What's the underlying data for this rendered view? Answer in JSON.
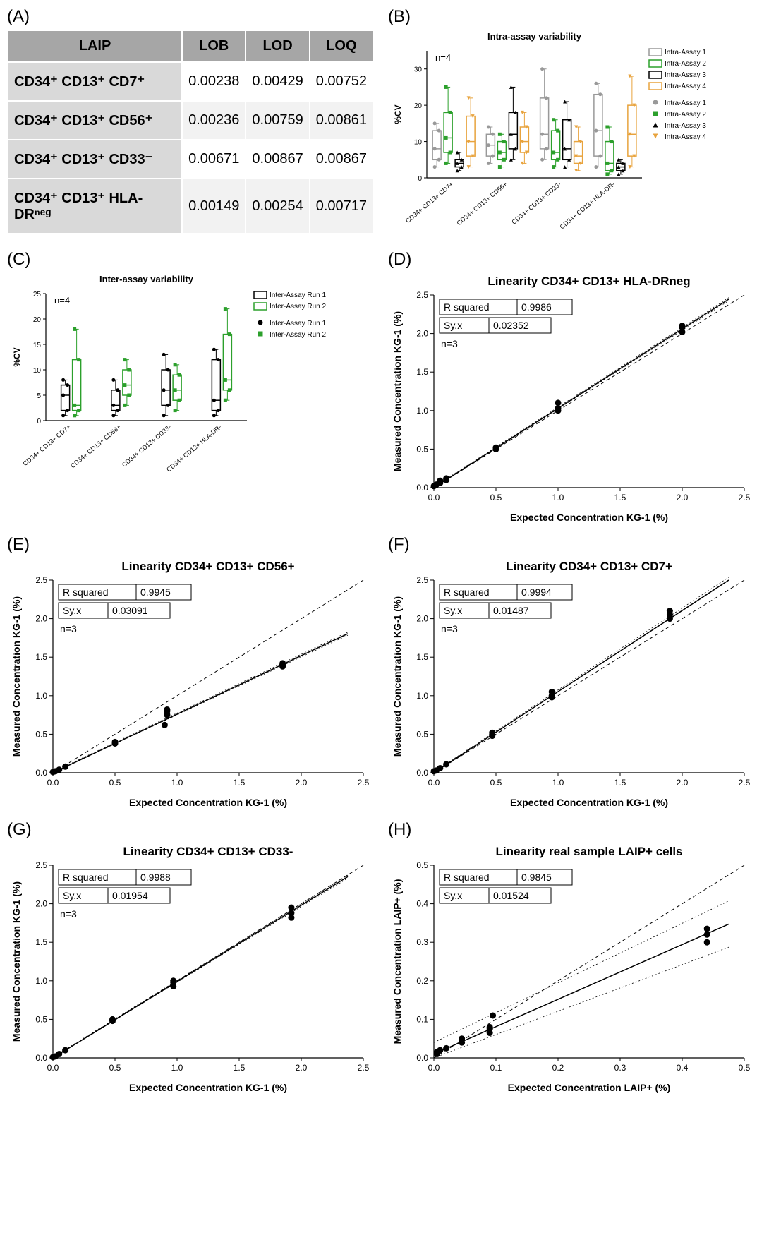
{
  "panelA": {
    "label": "(A)",
    "headers": [
      "LAIP",
      "LOB",
      "LOD",
      "LOQ"
    ],
    "rows": [
      {
        "laip": "CD34⁺ CD13⁺ CD7⁺",
        "lob": "0.00238",
        "lod": "0.00429",
        "loq": "0.00752"
      },
      {
        "laip": "CD34⁺ CD13⁺ CD56⁺",
        "lob": "0.00236",
        "lod": "0.00759",
        "loq": "0.00861"
      },
      {
        "laip": "CD34⁺ CD13⁺ CD33⁻",
        "lob": "0.00671",
        "lod": "0.00867",
        "loq": "0.00867"
      },
      {
        "laip": "CD34⁺ CD13⁺ HLA-DRⁿᵉᵍ",
        "lob": "0.00149",
        "lod": "0.00254",
        "loq": "0.00717"
      }
    ]
  },
  "panelB": {
    "label": "(B)",
    "title": "Intra-assay variability",
    "n_label": "n=4",
    "ylabel": "%CV",
    "ymax": 35,
    "ytick_step": 10,
    "categories": [
      "CD34+ CD13+ CD7+",
      "CD34+ CD13+ CD56+",
      "CD34+ CD13+ CD33-",
      "CD34+ CD13+ HLA-DR-"
    ],
    "series": [
      {
        "name": "Intra-Assay 1",
        "color": "#999999",
        "marker": "circle",
        "boxes": [
          {
            "min": 3,
            "q1": 5,
            "med": 8,
            "q3": 13,
            "max": 15
          },
          {
            "min": 4,
            "q1": 6,
            "med": 9,
            "q3": 12,
            "max": 14
          },
          {
            "min": 5,
            "q1": 8,
            "med": 12,
            "q3": 22,
            "max": 30
          },
          {
            "min": 3,
            "q1": 6,
            "med": 13,
            "q3": 23,
            "max": 26
          }
        ]
      },
      {
        "name": "Intra-Assay 2",
        "color": "#2ca02c",
        "marker": "square",
        "boxes": [
          {
            "min": 4,
            "q1": 7,
            "med": 11,
            "q3": 18,
            "max": 25
          },
          {
            "min": 3,
            "q1": 5,
            "med": 7,
            "q3": 10,
            "max": 12
          },
          {
            "min": 3,
            "q1": 5,
            "med": 7,
            "q3": 13,
            "max": 16
          },
          {
            "min": 1,
            "q1": 2,
            "med": 4,
            "q3": 10,
            "max": 14
          }
        ]
      },
      {
        "name": "Intra-Assay 3",
        "color": "#000000",
        "marker": "triangle",
        "boxes": [
          {
            "min": 2,
            "q1": 3,
            "med": 4,
            "q3": 5,
            "max": 7
          },
          {
            "min": 5,
            "q1": 8,
            "med": 12,
            "q3": 18,
            "max": 25
          },
          {
            "min": 3,
            "q1": 5,
            "med": 8,
            "q3": 16,
            "max": 21
          },
          {
            "min": 1,
            "q1": 2,
            "med": 3,
            "q3": 4,
            "max": 5
          }
        ]
      },
      {
        "name": "Intra-Assay 4",
        "color": "#e8a33d",
        "marker": "tridown",
        "boxes": [
          {
            "min": 3,
            "q1": 6,
            "med": 10,
            "q3": 17,
            "max": 22
          },
          {
            "min": 4,
            "q1": 7,
            "med": 10,
            "q3": 14,
            "max": 18
          },
          {
            "min": 2,
            "q1": 4,
            "med": 6,
            "q3": 10,
            "max": 14
          },
          {
            "min": 3,
            "q1": 6,
            "med": 12,
            "q3": 20,
            "max": 28
          }
        ]
      }
    ],
    "legend_box": [
      "Intra-Assay 1",
      "Intra-Assay 2",
      "Intra-Assay 3",
      "Intra-Assay 4"
    ],
    "legend_marker": [
      "Intra-Assay 1",
      "Intra-Assay 2",
      "Intra-Assay 3",
      "Intra-Assay 4"
    ]
  },
  "panelC": {
    "label": "(C)",
    "title": "Inter-assay variability",
    "n_label": "n=4",
    "ylabel": "%CV",
    "ymax": 25,
    "ytick_step": 5,
    "categories": [
      "CD34+ CD13+ CD7+",
      "CD34+ CD13+ CD56+",
      "CD34+ CD13+ CD33-",
      "CD34+ CD13+ HLA-DR-"
    ],
    "series": [
      {
        "name": "Inter-Assay Run 1",
        "color": "#000000",
        "marker": "circle",
        "boxes": [
          {
            "min": 1,
            "q1": 2,
            "med": 5,
            "q3": 7,
            "max": 8
          },
          {
            "min": 1,
            "q1": 2,
            "med": 3,
            "q3": 6,
            "max": 8
          },
          {
            "min": 1,
            "q1": 3,
            "med": 6,
            "q3": 10,
            "max": 13
          },
          {
            "min": 1,
            "q1": 2,
            "med": 4,
            "q3": 12,
            "max": 14
          }
        ]
      },
      {
        "name": "Inter-Assay Run 2",
        "color": "#2ca02c",
        "marker": "square",
        "boxes": [
          {
            "min": 1,
            "q1": 2,
            "med": 3,
            "q3": 12,
            "max": 18
          },
          {
            "min": 3,
            "q1": 5,
            "med": 7,
            "q3": 10,
            "max": 12
          },
          {
            "min": 2,
            "q1": 4,
            "med": 6,
            "q3": 9,
            "max": 11
          },
          {
            "min": 4,
            "q1": 6,
            "med": 8,
            "q3": 17,
            "max": 22
          }
        ]
      }
    ],
    "legend_box": [
      "Inter-Assay Run 1",
      "Inter-Assay Run 2"
    ],
    "legend_marker": [
      "Inter-Assay Run 1",
      "Inter-Assay Run 2"
    ]
  },
  "panelD": {
    "label": "(D)",
    "title": "Linearity CD34+ CD13+ HLA-DRneg",
    "xlabel": "Expected Concentration KG-1 (%)",
    "ylabel": "Measured Concentration KG-1 (%)",
    "xmax": 2.5,
    "ymax": 2.5,
    "tick_step": 0.5,
    "r2_label": "R squared",
    "r2": "0.9986",
    "syx_label": "Sy.x",
    "syx": "0.02352",
    "n_label": "n=3",
    "slope": 1.03,
    "intercept": 0.0,
    "points": [
      [
        0,
        0.02
      ],
      [
        0.02,
        0.04
      ],
      [
        0.05,
        0.06
      ],
      [
        0.05,
        0.09
      ],
      [
        0.1,
        0.1
      ],
      [
        0.1,
        0.12
      ],
      [
        0.5,
        0.5
      ],
      [
        0.5,
        0.52
      ],
      [
        1.0,
        1.0
      ],
      [
        1.0,
        1.03
      ],
      [
        1.0,
        1.1
      ],
      [
        2.0,
        2.02
      ],
      [
        2.0,
        2.08
      ],
      [
        2.0,
        2.1
      ]
    ]
  },
  "panelE": {
    "label": "(E)",
    "title": "Linearity CD34+ CD13+ CD56+",
    "xlabel": "Expected Concentration KG-1 (%)",
    "ylabel": "Measured Concentration KG-1 (%)",
    "xmax": 2.5,
    "ymax": 2.5,
    "tick_step": 0.5,
    "r2_label": "R squared",
    "r2": "0.9945",
    "syx_label": "Sy.x",
    "syx": "0.03091",
    "n_label": "n=3",
    "slope": 0.76,
    "intercept": 0.0,
    "points": [
      [
        0,
        0.01
      ],
      [
        0.02,
        0.02
      ],
      [
        0.05,
        0.04
      ],
      [
        0.1,
        0.08
      ],
      [
        0.5,
        0.38
      ],
      [
        0.5,
        0.4
      ],
      [
        0.9,
        0.62
      ],
      [
        0.92,
        0.75
      ],
      [
        0.92,
        0.8
      ],
      [
        0.92,
        0.82
      ],
      [
        1.85,
        1.38
      ],
      [
        1.85,
        1.4
      ],
      [
        1.85,
        1.42
      ]
    ]
  },
  "panelF": {
    "label": "(F)",
    "title": "Linearity CD34+ CD13+ CD7+",
    "xlabel": "Expected Concentration KG-1 (%)",
    "ylabel": "Measured Concentration KG-1 (%)",
    "xmax": 2.5,
    "ymax": 2.5,
    "tick_step": 0.5,
    "r2_label": "R squared",
    "r2": "0.9994",
    "syx_label": "Sy.x",
    "syx": "0.01487",
    "n_label": "n=3",
    "slope": 1.06,
    "intercept": 0.0,
    "points": [
      [
        0,
        0.02
      ],
      [
        0.02,
        0.03
      ],
      [
        0.05,
        0.06
      ],
      [
        0.1,
        0.11
      ],
      [
        0.47,
        0.48
      ],
      [
        0.47,
        0.5
      ],
      [
        0.47,
        0.52
      ],
      [
        0.95,
        0.98
      ],
      [
        0.95,
        1.0
      ],
      [
        0.95,
        1.05
      ],
      [
        1.9,
        2.0
      ],
      [
        1.9,
        2.05
      ],
      [
        1.9,
        2.1
      ]
    ]
  },
  "panelG": {
    "label": "(G)",
    "title": "Linearity CD34+ CD13+ CD33-",
    "xlabel": "Expected Concentration KG-1 (%)",
    "ylabel": "Measured Concentration KG-1 (%)",
    "xmax": 2.5,
    "ymax": 2.5,
    "tick_step": 0.5,
    "r2_label": "R squared",
    "r2": "0.9988",
    "syx_label": "Sy.x",
    "syx": "0.01954",
    "n_label": "n=3",
    "slope": 0.99,
    "intercept": 0.0,
    "points": [
      [
        0,
        0.01
      ],
      [
        0.02,
        0.02
      ],
      [
        0.05,
        0.05
      ],
      [
        0.1,
        0.1
      ],
      [
        0.48,
        0.48
      ],
      [
        0.48,
        0.5
      ],
      [
        0.97,
        0.93
      ],
      [
        0.97,
        0.98
      ],
      [
        0.97,
        1.0
      ],
      [
        1.92,
        1.82
      ],
      [
        1.92,
        1.88
      ],
      [
        1.92,
        1.95
      ]
    ]
  },
  "panelH": {
    "label": "(H)",
    "title": "Linearity real sample LAIP+ cells",
    "xlabel": "Expected Concentration LAIP+ (%)",
    "ylabel": "Measured Concentration LAIP+ (%)",
    "xmax": 0.5,
    "ymax": 0.5,
    "tick_step": 0.1,
    "r2_label": "R squared",
    "r2": "0.9845",
    "syx_label": "Sy.x",
    "syx": "0.01524",
    "n_label": "",
    "slope": 0.71,
    "intercept": 0.01,
    "ci_spread": 0.03,
    "points": [
      [
        0.005,
        0.01
      ],
      [
        0.005,
        0.015
      ],
      [
        0.01,
        0.02
      ],
      [
        0.02,
        0.025
      ],
      [
        0.045,
        0.04
      ],
      [
        0.045,
        0.05
      ],
      [
        0.09,
        0.065
      ],
      [
        0.09,
        0.075
      ],
      [
        0.09,
        0.08
      ],
      [
        0.095,
        0.11
      ],
      [
        0.44,
        0.3
      ],
      [
        0.44,
        0.32
      ],
      [
        0.44,
        0.335
      ]
    ]
  },
  "watermark": ""
}
